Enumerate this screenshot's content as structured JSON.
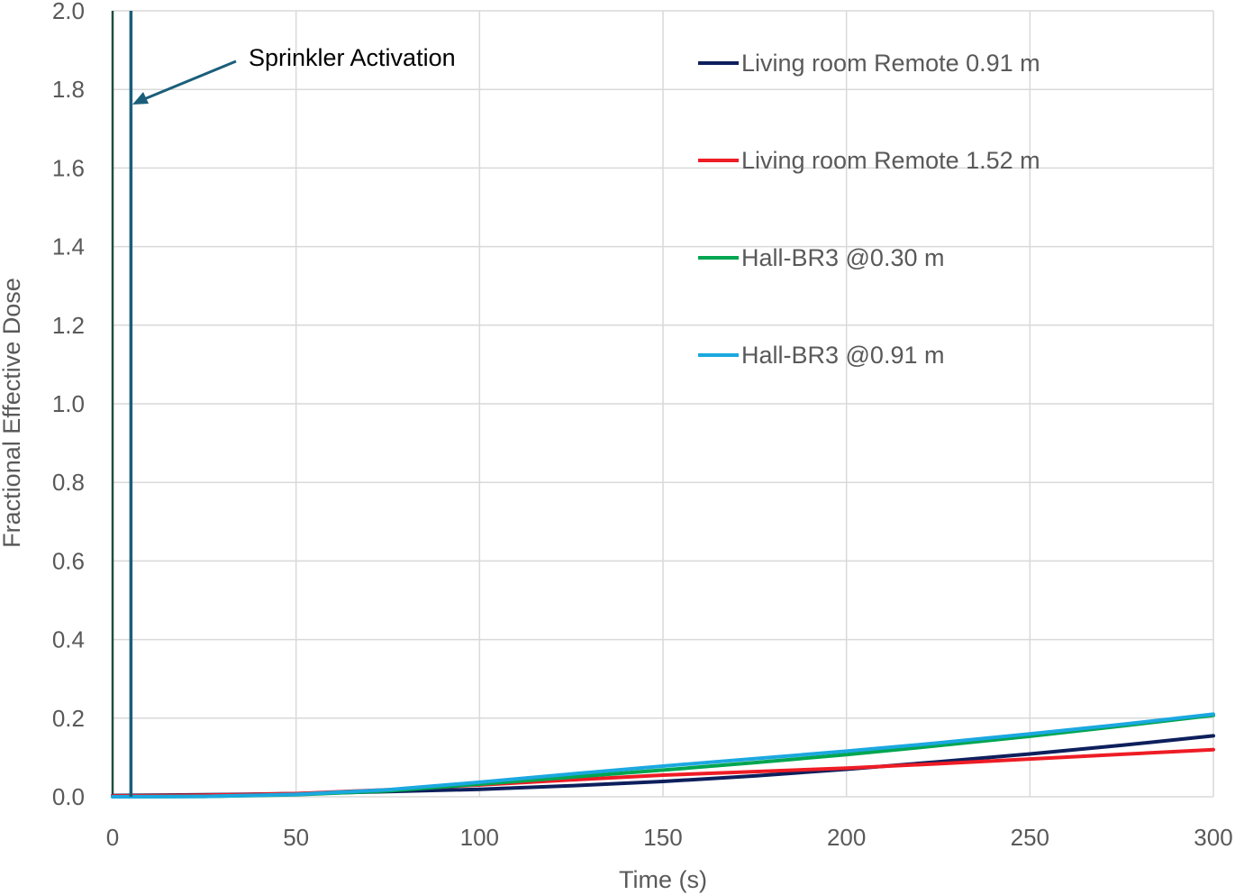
{
  "chart_data": {
    "type": "line",
    "xlabel": "Time (s)",
    "ylabel": "Fractional Effective Dose",
    "xlim": [
      0,
      300
    ],
    "ylim": [
      0,
      2.0
    ],
    "x_ticks": [
      0,
      50,
      100,
      150,
      200,
      250,
      300
    ],
    "y_ticks": [
      "0.0",
      "0.2",
      "0.4",
      "0.6",
      "0.8",
      "1.0",
      "1.2",
      "1.4",
      "1.6",
      "1.8",
      "2.0"
    ],
    "grid": true,
    "legend_position": "top-right",
    "annotation": {
      "text": "Sprinkler Activation",
      "x": 5
    },
    "series": [
      {
        "name": "Living room Remote 0.91 m",
        "color": "#0d1f5c",
        "x": [
          0,
          25,
          50,
          75,
          100,
          125,
          150,
          175,
          200,
          225,
          250,
          275,
          300
        ],
        "y": [
          0.003,
          0.005,
          0.008,
          0.013,
          0.019,
          0.028,
          0.039,
          0.053,
          0.07,
          0.089,
          0.109,
          0.131,
          0.155
        ]
      },
      {
        "name": "Living room Remote 1.52 m",
        "color": "#ee1c25",
        "x": [
          0,
          25,
          50,
          75,
          100,
          125,
          150,
          175,
          200,
          225,
          250,
          275,
          300
        ],
        "y": [
          0.002,
          0.004,
          0.008,
          0.018,
          0.03,
          0.043,
          0.055,
          0.064,
          0.073,
          0.084,
          0.096,
          0.108,
          0.12
        ]
      },
      {
        "name": "Hall-BR3 @0.30 m",
        "color": "#00a650",
        "x": [
          0,
          25,
          50,
          75,
          100,
          125,
          150,
          175,
          200,
          225,
          250,
          275,
          300
        ],
        "y": [
          0.0,
          0.001,
          0.005,
          0.015,
          0.032,
          0.05,
          0.068,
          0.087,
          0.107,
          0.13,
          0.154,
          0.18,
          0.207
        ]
      },
      {
        "name": "Hall-BR3 @0.91 m",
        "color": "#1ba8e0",
        "x": [
          0,
          25,
          50,
          75,
          100,
          125,
          150,
          175,
          200,
          225,
          250,
          275,
          300
        ],
        "y": [
          0.0,
          0.001,
          0.006,
          0.018,
          0.037,
          0.058,
          0.078,
          0.097,
          0.116,
          0.137,
          0.16,
          0.184,
          0.21
        ]
      }
    ],
    "marker_line_color": "#1b5e7a",
    "frame_color": "#1f4e3d",
    "grid_color": "#d9d9d9"
  }
}
